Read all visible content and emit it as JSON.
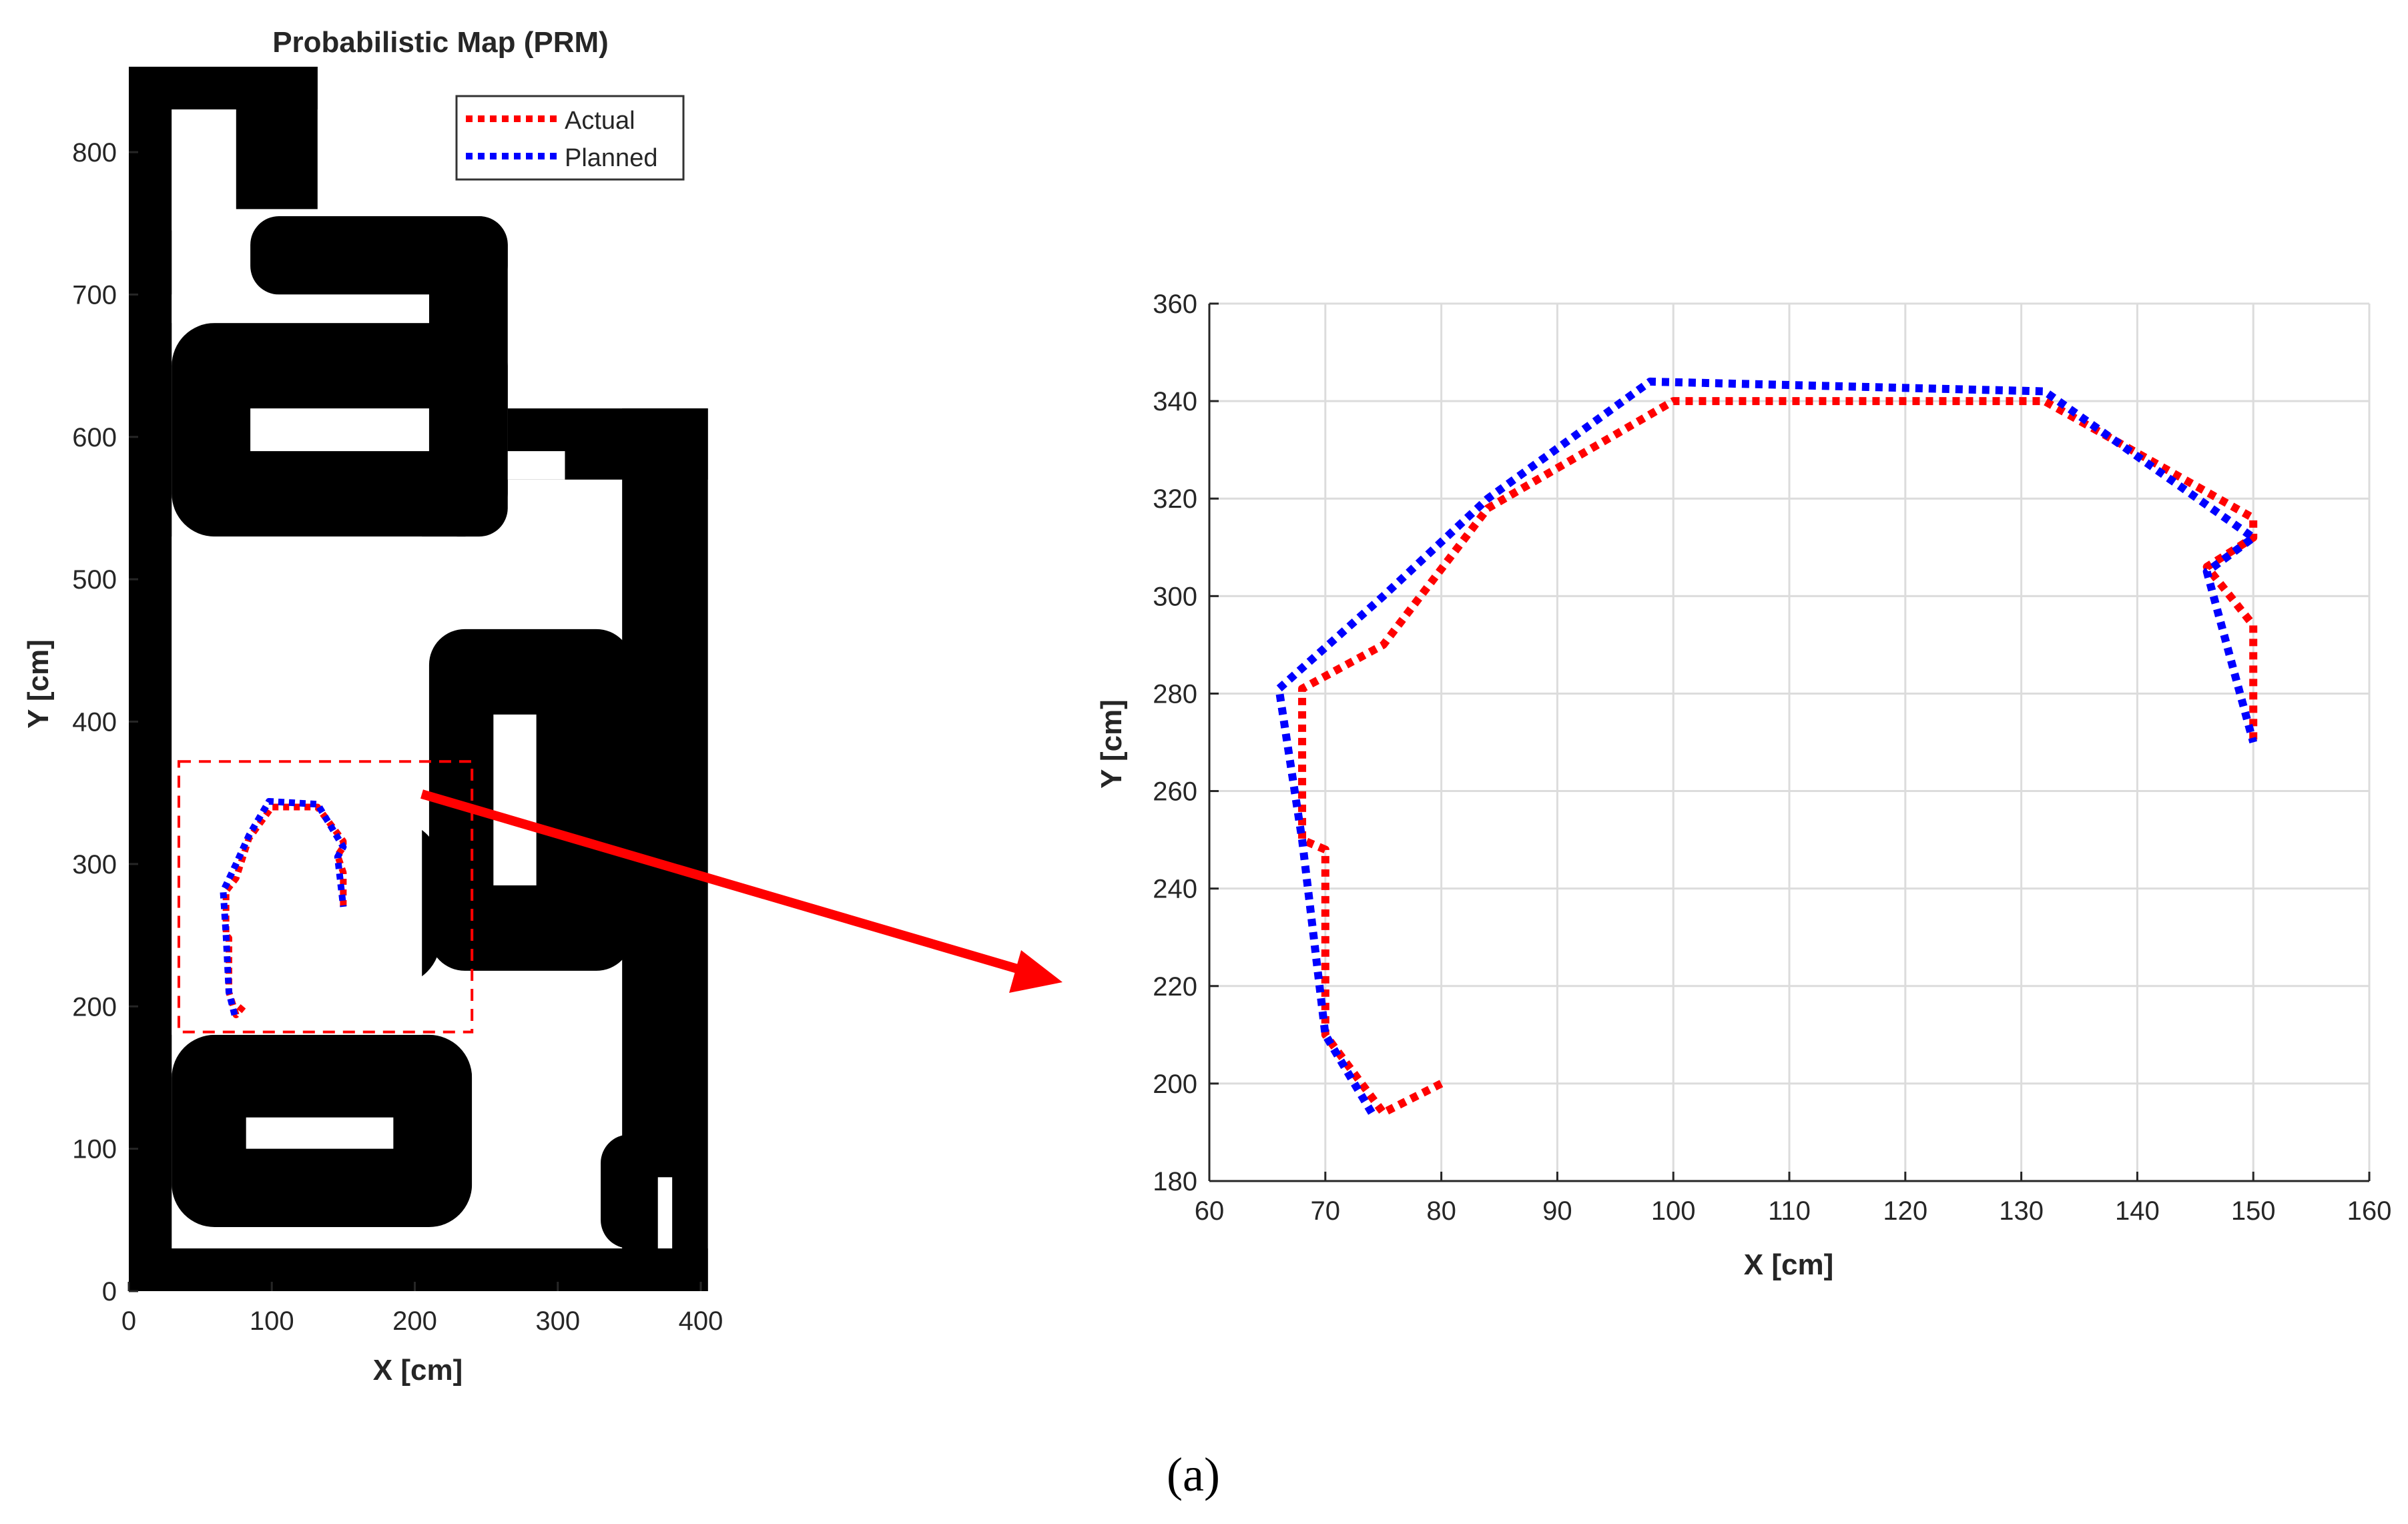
{
  "caption": "(a)",
  "chart_data": [
    {
      "type": "line",
      "title": "Probabilistic Map (PRM)",
      "xlabel": "X [cm]",
      "ylabel": "Y [cm]",
      "xlim": [
        0,
        400
      ],
      "ylim": [
        0,
        860
      ],
      "xticks": [
        0,
        100,
        200,
        300,
        400
      ],
      "yticks": [
        0,
        100,
        200,
        300,
        400,
        500,
        600,
        700,
        800
      ],
      "grid": false,
      "legend_placement": "top-right",
      "colors": {
        "actual": "#ff0000",
        "planned": "#0000ff",
        "obstacle": "#000000",
        "zoom_box": "#ff0000"
      },
      "series": [
        {
          "name": "Actual",
          "x": [
            80,
            75,
            70,
            70,
            68,
            68,
            75,
            84,
            100,
            132,
            150,
            150,
            146,
            150,
            150
          ],
          "y": [
            200,
            194,
            210,
            248,
            250,
            281,
            290,
            318,
            340,
            340,
            316,
            312,
            306,
            294,
            270
          ]
        },
        {
          "name": "Planned",
          "x": [
            74,
            70,
            68,
            66,
            75,
            84,
            98,
            132,
            150,
            146,
            150
          ],
          "y": [
            194,
            210,
            250,
            281,
            300,
            320,
            344,
            342,
            312,
            305,
            270
          ]
        }
      ],
      "obstacles": [
        {
          "kind": "rect",
          "x": [
            0,
            405
          ],
          "y": [
            0,
            30
          ]
        },
        {
          "kind": "rect",
          "x": [
            0,
            30
          ],
          "y": [
            0,
            860
          ]
        },
        {
          "kind": "rect",
          "x": [
            0,
            132
          ],
          "y": [
            830,
            860
          ]
        },
        {
          "kind": "rect",
          "x": [
            75,
            132
          ],
          "y": [
            760,
            860
          ]
        },
        {
          "kind": "rect",
          "x": [
            85,
            265
          ],
          "y": [
            700,
            755
          ],
          "r": 20
        },
        {
          "kind": "rect",
          "x": [
            210,
            265
          ],
          "y": [
            530,
            755
          ],
          "r": 20
        },
        {
          "kind": "rect",
          "x": [
            30,
            265
          ],
          "y": [
            530,
            680
          ],
          "r": 30
        },
        {
          "kind": "rect",
          "x": [
            265,
            405
          ],
          "y": [
            570,
            620
          ]
        },
        {
          "kind": "rect",
          "x": [
            345,
            405
          ],
          "y": [
            0,
            620
          ]
        },
        {
          "kind": "rect",
          "x": [
            210,
            352
          ],
          "y": [
            225,
            465
          ],
          "r": 25
        },
        {
          "kind": "rect",
          "x": [
            87,
            165
          ],
          "y": [
            215,
            340
          ],
          "r": 40
        },
        {
          "kind": "rect",
          "x": [
            155,
            218
          ],
          "y": [
            215,
            330
          ],
          "r": 32
        },
        {
          "kind": "rect",
          "x": [
            30,
            240
          ],
          "y": [
            45,
            180
          ],
          "r": 30
        },
        {
          "kind": "rect",
          "x": [
            330,
            370
          ],
          "y": [
            30,
            110
          ],
          "r": 20
        }
      ],
      "free_space": [
        {
          "x": [
            30,
            75
          ],
          "y": [
            745,
            830
          ]
        },
        {
          "x": [
            30,
            210
          ],
          "y": [
            680,
            700
          ]
        },
        {
          "x": [
            85,
            210
          ],
          "y": [
            590,
            620
          ]
        },
        {
          "x": [
            265,
            305
          ],
          "y": [
            570,
            590
          ]
        },
        {
          "x": [
            30,
            205
          ],
          "y": [
            180,
            530
          ]
        },
        {
          "x": [
            255,
            285
          ],
          "y": [
            285,
            405
          ]
        },
        {
          "x": [
            82,
            185
          ],
          "y": [
            100,
            122
          ]
        },
        {
          "x": [
            240,
            330
          ],
          "y": [
            30,
            180
          ]
        },
        {
          "x": [
            370,
            380
          ],
          "y": [
            30,
            80
          ]
        }
      ],
      "zoom_box": {
        "x": [
          35,
          240
        ],
        "y": [
          182,
          372
        ]
      }
    },
    {
      "type": "line",
      "title": "",
      "xlabel": "X [cm]",
      "ylabel": "Y [cm]",
      "xlim": [
        60,
        160
      ],
      "ylim": [
        180,
        360
      ],
      "xticks": [
        60,
        70,
        80,
        90,
        100,
        110,
        120,
        130,
        140,
        150,
        160
      ],
      "yticks": [
        180,
        200,
        220,
        240,
        260,
        280,
        300,
        320,
        340,
        360
      ],
      "grid": true,
      "colors": {
        "actual": "#ff0000",
        "planned": "#0000ff",
        "grid": "#dcdcdc"
      },
      "series": [
        {
          "name": "Actual",
          "x": [
            80,
            75,
            70,
            70,
            68,
            68,
            75,
            84,
            100,
            132,
            150,
            150,
            146,
            150,
            150
          ],
          "y": [
            200,
            194,
            210,
            248,
            250,
            281,
            290,
            318,
            340,
            340,
            316,
            312,
            306,
            294,
            270
          ]
        },
        {
          "name": "Planned",
          "x": [
            74,
            70,
            68,
            66,
            75,
            84,
            98,
            132,
            150,
            146,
            150
          ],
          "y": [
            194,
            210,
            250,
            281,
            300,
            320,
            344,
            342,
            312,
            305,
            270
          ]
        }
      ]
    }
  ]
}
